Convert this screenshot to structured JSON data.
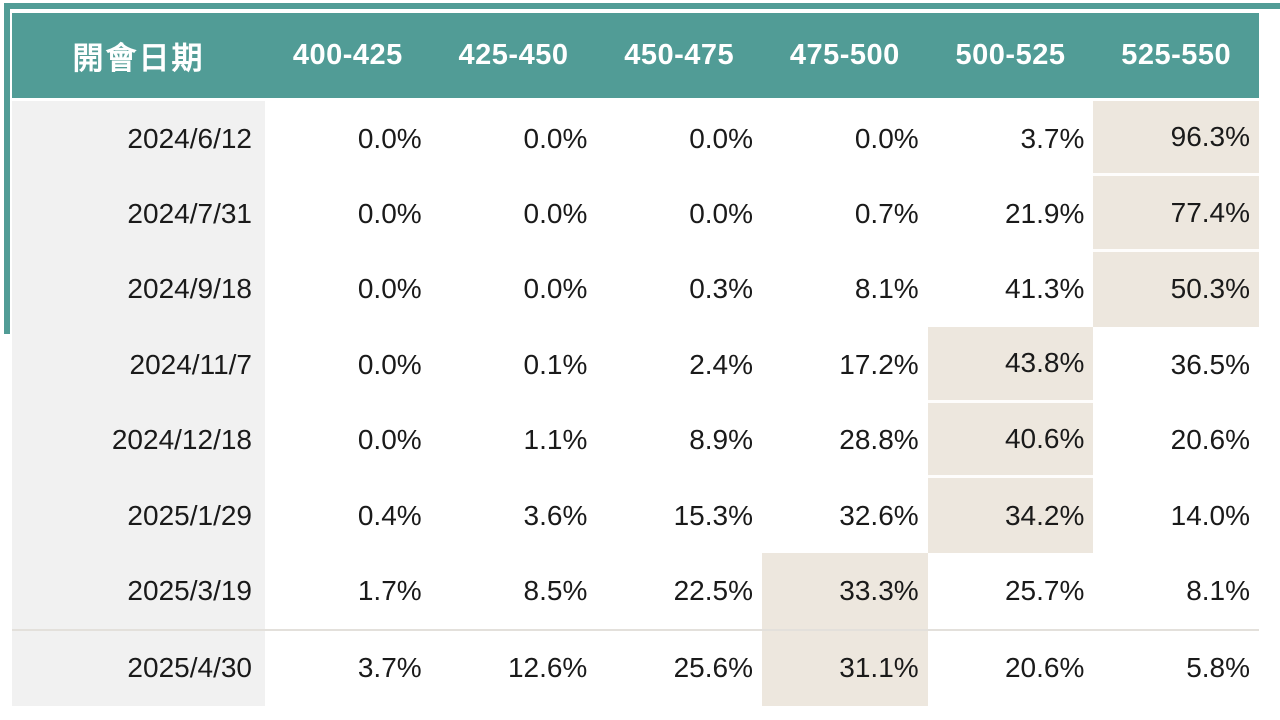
{
  "colors": {
    "header_bg": "#519C96",
    "header_text": "#FFFFFF",
    "date_col_bg": "#F1F1F1",
    "highlight_bg": "#EDE7DE",
    "body_text": "#1A1A1A",
    "divider": "#E3E0DB"
  },
  "table": {
    "header": {
      "date_label": "開會日期",
      "range_labels": [
        "400-425",
        "425-450",
        "450-475",
        "475-500",
        "500-525",
        "525-550"
      ]
    },
    "rows": [
      {
        "date": "2024/6/12",
        "values": [
          "0.0%",
          "0.0%",
          "0.0%",
          "0.0%",
          "3.7%",
          "96.3%"
        ],
        "highlight": 5
      },
      {
        "date": "2024/7/31",
        "values": [
          "0.0%",
          "0.0%",
          "0.0%",
          "0.7%",
          "21.9%",
          "77.4%"
        ],
        "highlight": 5
      },
      {
        "date": "2024/9/18",
        "values": [
          "0.0%",
          "0.0%",
          "0.3%",
          "8.1%",
          "41.3%",
          "50.3%"
        ],
        "highlight": 5
      },
      {
        "date": "2024/11/7",
        "values": [
          "0.0%",
          "0.1%",
          "2.4%",
          "17.2%",
          "43.8%",
          "36.5%"
        ],
        "highlight": 4
      },
      {
        "date": "2024/12/18",
        "values": [
          "0.0%",
          "1.1%",
          "8.9%",
          "28.8%",
          "40.6%",
          "20.6%"
        ],
        "highlight": 4
      },
      {
        "date": "2025/1/29",
        "values": [
          "0.4%",
          "3.6%",
          "15.3%",
          "32.6%",
          "34.2%",
          "14.0%"
        ],
        "highlight": 4
      },
      {
        "date": "2025/3/19",
        "values": [
          "1.7%",
          "8.5%",
          "22.5%",
          "33.3%",
          "25.7%",
          "8.1%"
        ],
        "highlight": 3
      },
      {
        "date": "2025/4/30",
        "values": [
          "3.7%",
          "12.6%",
          "25.6%",
          "31.1%",
          "20.6%",
          "5.8%"
        ],
        "highlight": 3
      }
    ],
    "divider_above_row": 7
  },
  "chart_data": {
    "type": "table",
    "columns": [
      "開會日期",
      "400-425",
      "425-450",
      "450-475",
      "475-500",
      "500-525",
      "525-550"
    ],
    "unit": "%",
    "rows": [
      {
        "date": "2024/6/12",
        "values": [
          0.0,
          0.0,
          0.0,
          0.0,
          3.7,
          96.3
        ],
        "highlighted_column": "525-550"
      },
      {
        "date": "2024/7/31",
        "values": [
          0.0,
          0.0,
          0.0,
          0.7,
          21.9,
          77.4
        ],
        "highlighted_column": "525-550"
      },
      {
        "date": "2024/9/18",
        "values": [
          0.0,
          0.0,
          0.3,
          8.1,
          41.3,
          50.3
        ],
        "highlighted_column": "525-550"
      },
      {
        "date": "2024/11/7",
        "values": [
          0.0,
          0.1,
          2.4,
          17.2,
          43.8,
          36.5
        ],
        "highlighted_column": "500-525"
      },
      {
        "date": "2024/12/18",
        "values": [
          0.0,
          1.1,
          8.9,
          28.8,
          40.6,
          20.6
        ],
        "highlighted_column": "500-525"
      },
      {
        "date": "2025/1/29",
        "values": [
          0.4,
          3.6,
          15.3,
          32.6,
          34.2,
          14.0
        ],
        "highlighted_column": "500-525"
      },
      {
        "date": "2025/3/19",
        "values": [
          1.7,
          8.5,
          22.5,
          33.3,
          25.7,
          8.1
        ],
        "highlighted_column": "475-500"
      },
      {
        "date": "2025/4/30",
        "values": [
          3.7,
          12.6,
          25.6,
          31.1,
          20.6,
          5.8
        ],
        "highlighted_column": "475-500"
      }
    ],
    "layout_hints": {
      "highlight_style": "beige fill on max-probability cell per row",
      "grid": "off",
      "legend": "none"
    }
  }
}
